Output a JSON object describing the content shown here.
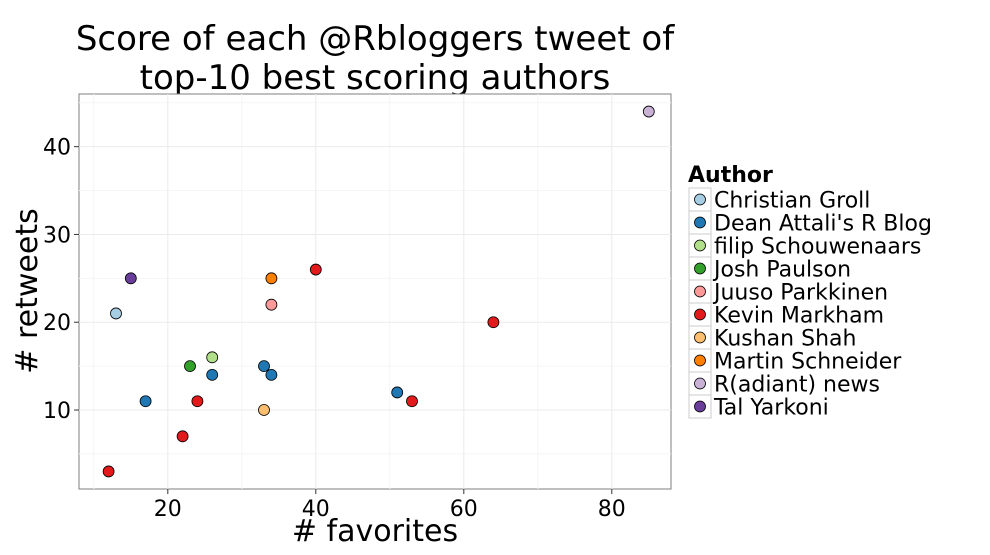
{
  "chart_data": {
    "type": "scatter",
    "title_lines": [
      "Score of each @Rbloggers tweet of",
      "top-10 best scoring authors"
    ],
    "xlabel": "# favorites",
    "ylabel": "# retweets",
    "xlim": [
      8,
      88
    ],
    "ylim": [
      1,
      46
    ],
    "x_ticks": [
      20,
      40,
      60,
      80
    ],
    "y_ticks": [
      10,
      20,
      30,
      40
    ],
    "grid": true,
    "legend": {
      "title": "Author",
      "placement": "right"
    },
    "series": [
      {
        "name": "Christian Groll",
        "color": "#a6cee3",
        "points": [
          [
            13,
            21
          ]
        ]
      },
      {
        "name": "Dean Attali's R Blog",
        "color": "#1f78b4",
        "points": [
          [
            17,
            11
          ],
          [
            26,
            14
          ],
          [
            33,
            15
          ],
          [
            34,
            14
          ],
          [
            51,
            12
          ]
        ]
      },
      {
        "name": "filip Schouwenaars",
        "color": "#b2df8a",
        "points": [
          [
            26,
            16
          ]
        ]
      },
      {
        "name": "Josh Paulson",
        "color": "#33a02c",
        "points": [
          [
            23,
            15
          ]
        ]
      },
      {
        "name": "Juuso Parkkinen",
        "color": "#fb9a99",
        "points": [
          [
            34,
            22
          ]
        ]
      },
      {
        "name": "Kevin Markham",
        "color": "#e31a1c",
        "points": [
          [
            12,
            3
          ],
          [
            22,
            7
          ],
          [
            24,
            11
          ],
          [
            40,
            26
          ],
          [
            53,
            11
          ],
          [
            64,
            20
          ]
        ]
      },
      {
        "name": "Kushan Shah",
        "color": "#fdbf6f",
        "points": [
          [
            33,
            10
          ]
        ]
      },
      {
        "name": "Martin Schneider",
        "color": "#ff7f00",
        "points": [
          [
            34,
            25
          ]
        ]
      },
      {
        "name": "R(adiant) news",
        "color": "#cab2d6",
        "points": [
          [
            85,
            44
          ]
        ]
      },
      {
        "name": "Tal Yarkoni",
        "color": "#6a3d9a",
        "points": [
          [
            15,
            25
          ]
        ]
      }
    ]
  }
}
